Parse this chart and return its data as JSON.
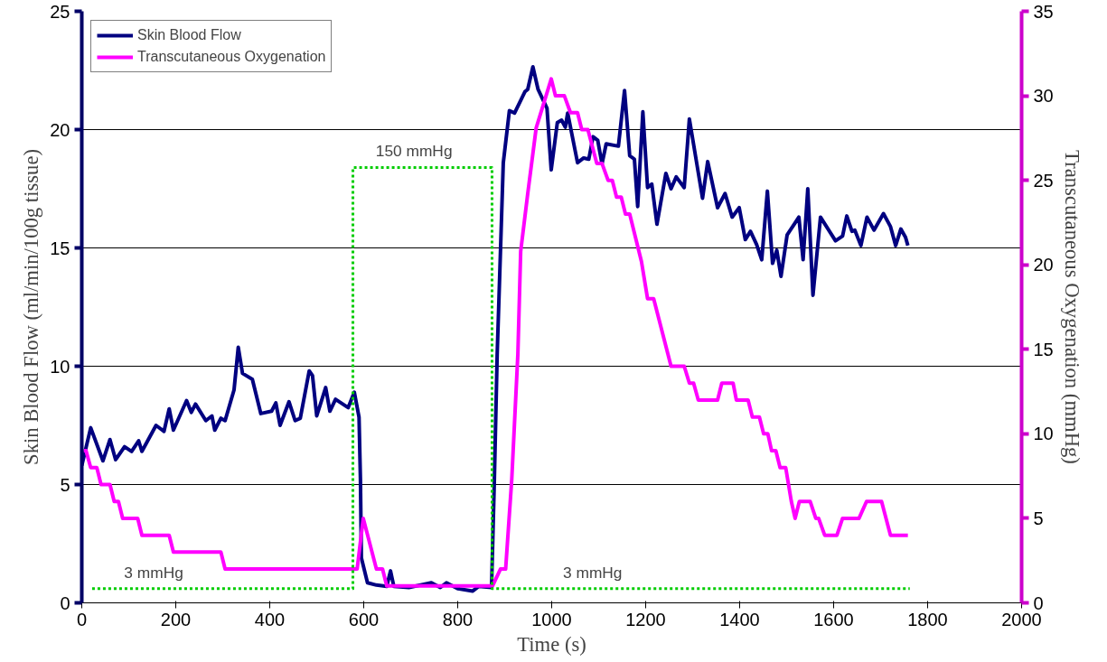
{
  "chart_data": {
    "type": "line",
    "xlabel": "Time (s)",
    "ylabel": "Skin Blood Flow (ml/min/100g tissue)",
    "y2label": "Transcutaneous Oxygenation (mmHg)",
    "xlim": [
      0,
      2000
    ],
    "xticks": [
      0,
      200,
      400,
      600,
      800,
      1000,
      1200,
      1400,
      1600,
      1800,
      2000
    ],
    "ylim": [
      0,
      25
    ],
    "yticks": [
      0,
      5,
      10,
      15,
      20,
      25
    ],
    "y2lim": [
      0,
      35
    ],
    "y2ticks": [
      0,
      5,
      10,
      15,
      20,
      25,
      30,
      35
    ],
    "grid": "y",
    "legend": "top left",
    "marker": "none",
    "line_style": "solid",
    "series": [
      {
        "name": "Skin Blood Flow",
        "color": "#000080",
        "x": [
          0,
          19,
          45,
          60,
          72,
          91,
          106,
          121,
          128,
          158,
          175,
          186,
          195,
          223,
          233,
          242,
          264,
          277,
          283,
          296,
          305,
          324,
          333,
          342,
          363,
          381,
          404,
          413,
          422,
          441,
          454,
          465,
          484,
          491,
          500,
          519,
          528,
          540,
          567,
          580,
          590,
          593,
          595,
          608,
          627,
          649,
          657,
          664,
          696,
          744,
          763,
          776,
          800,
          832,
          845,
          872,
          878,
          884,
          897,
          910,
          921,
          943,
          949,
          960,
          971,
          990,
          999,
          1012,
          1021,
          1029,
          1034,
          1055,
          1068,
          1079,
          1088,
          1098,
          1107,
          1116,
          1142,
          1155,
          1166,
          1176,
          1183,
          1194,
          1204,
          1213,
          1224,
          1243,
          1254,
          1265,
          1282,
          1293,
          1321,
          1332,
          1353,
          1369,
          1384,
          1399,
          1412,
          1423,
          1436,
          1447,
          1459,
          1470,
          1479,
          1488,
          1501,
          1516,
          1526,
          1535,
          1545,
          1556,
          1572,
          1604,
          1619,
          1628,
          1639,
          1645,
          1658,
          1671,
          1686,
          1706,
          1721,
          1732,
          1743,
          1753,
          1758
        ],
        "values": [
          5.8,
          7.4,
          6.0,
          6.9,
          6.05,
          6.6,
          6.4,
          6.85,
          6.4,
          7.5,
          7.25,
          8.2,
          7.3,
          8.55,
          8.05,
          8.4,
          7.7,
          7.9,
          7.3,
          7.8,
          7.7,
          9.0,
          10.8,
          9.7,
          9.45,
          8.0,
          8.1,
          8.45,
          7.5,
          8.5,
          7.7,
          7.8,
          9.8,
          9.6,
          7.9,
          9.1,
          8.1,
          8.6,
          8.25,
          8.9,
          7.85,
          5.2,
          1.9,
          0.85,
          0.75,
          0.7,
          1.35,
          0.7,
          0.65,
          0.85,
          0.65,
          0.85,
          0.6,
          0.5,
          0.7,
          0.65,
          5.2,
          10.5,
          18.6,
          20.8,
          20.7,
          21.6,
          21.7,
          22.65,
          21.7,
          20.9,
          18.3,
          20.3,
          20.4,
          20.1,
          20.7,
          18.6,
          18.8,
          18.75,
          19.7,
          19.55,
          18.55,
          19.4,
          19.3,
          21.65,
          18.9,
          18.75,
          16.75,
          20.75,
          17.55,
          17.7,
          16.0,
          18.15,
          17.5,
          18.0,
          17.55,
          20.45,
          17.1,
          18.65,
          16.7,
          17.3,
          16.3,
          16.7,
          15.35,
          15.7,
          15.15,
          14.5,
          17.4,
          14.35,
          14.9,
          13.8,
          15.55,
          16.0,
          16.3,
          14.5,
          17.5,
          13.0,
          16.3,
          15.3,
          15.5,
          16.35,
          15.7,
          15.75,
          15.1,
          16.3,
          15.75,
          16.45,
          15.9,
          15.1,
          15.8,
          15.45,
          15.1
        ]
      },
      {
        "name": "Transcutaneous Oxygenation",
        "color": "#ff00ff",
        "axis": "y2",
        "x": [
          4,
          9,
          19,
          32,
          41,
          60,
          69,
          78,
          87,
          119,
          128,
          186,
          195,
          296,
          305,
          580,
          586,
          599,
          627,
          640,
          649,
          874,
          891,
          902,
          915,
          928,
          934,
          949,
          967,
          999,
          1008,
          1027,
          1040,
          1055,
          1064,
          1077,
          1096,
          1107,
          1120,
          1129,
          1138,
          1148,
          1157,
          1166,
          1191,
          1204,
          1217,
          1254,
          1282,
          1293,
          1302,
          1312,
          1330,
          1353,
          1362,
          1386,
          1393,
          1418,
          1427,
          1442,
          1451,
          1460,
          1468,
          1477,
          1486,
          1498,
          1510,
          1518,
          1527,
          1550,
          1562,
          1568,
          1581,
          1607,
          1619,
          1654,
          1670,
          1702,
          1721,
          1758
        ],
        "values": [
          9,
          9,
          8,
          8,
          7,
          7,
          6,
          6,
          5,
          5,
          4,
          4,
          3,
          3,
          2,
          2,
          2,
          5,
          2,
          2,
          1,
          1,
          2,
          2,
          7.3,
          14.7,
          20.8,
          24.2,
          28.1,
          31,
          30,
          30,
          29,
          29,
          28,
          28,
          26,
          26,
          25,
          25,
          24,
          24,
          23,
          23,
          20.2,
          18,
          18,
          14,
          14,
          13,
          13,
          12,
          12,
          12,
          13,
          13,
          12,
          12,
          11,
          11,
          10,
          10,
          9,
          9,
          8,
          8,
          6,
          5,
          6,
          6,
          5,
          5,
          4,
          4,
          5,
          5,
          6,
          6,
          4,
          4
        ]
      },
      {
        "color": "#00cc00",
        "line_style": "dotted",
        "x": [
          22,
          577,
          577,
          873,
          873,
          1762
        ],
        "values": [
          0.6,
          0.6,
          18.4,
          18.4,
          0.6,
          0.6
        ]
      }
    ],
    "annotations": [
      {
        "text": "3 mmHg",
        "x": 153,
        "y": 0.6
      },
      {
        "text": "150 mmHg",
        "x": 707,
        "y": 18.4
      },
      {
        "text": "3 mmHg",
        "x": 1087,
        "y": 0.6
      }
    ]
  }
}
